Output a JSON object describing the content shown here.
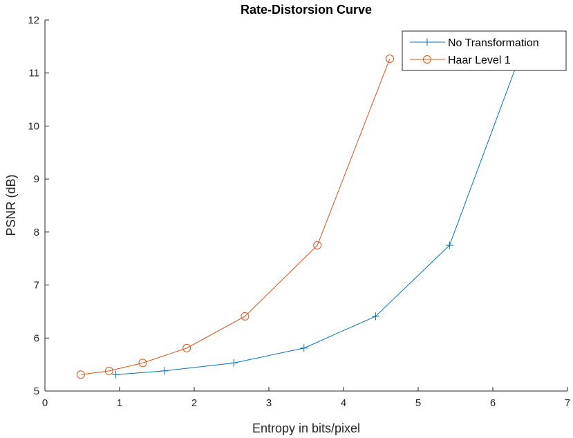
{
  "chart_data": {
    "type": "line",
    "title": "Rate-Distorsion Curve",
    "xlabel": "Entropy in bits/pixel",
    "ylabel": "PSNR (dB)",
    "xlim": [
      0,
      7
    ],
    "ylim": [
      5,
      12
    ],
    "xticks": [
      0,
      1,
      2,
      3,
      4,
      5,
      6,
      7
    ],
    "yticks": [
      5,
      6,
      7,
      8,
      9,
      10,
      11,
      12
    ],
    "grid": false,
    "legend_position": "top-right",
    "series": [
      {
        "name": "No Transformation",
        "marker": "plus",
        "color": "#0072BD",
        "x": [
          0.95,
          1.6,
          2.53,
          3.47,
          4.43,
          5.42,
          6.35
        ],
        "y": [
          5.31,
          5.38,
          5.53,
          5.81,
          6.41,
          7.75,
          11.27
        ]
      },
      {
        "name": "Haar Level 1",
        "marker": "circle",
        "color": "#D95319",
        "x": [
          0.48,
          0.86,
          1.31,
          1.9,
          2.68,
          3.65,
          4.62
        ],
        "y": [
          5.31,
          5.38,
          5.53,
          5.81,
          6.41,
          7.75,
          11.27
        ]
      }
    ]
  }
}
